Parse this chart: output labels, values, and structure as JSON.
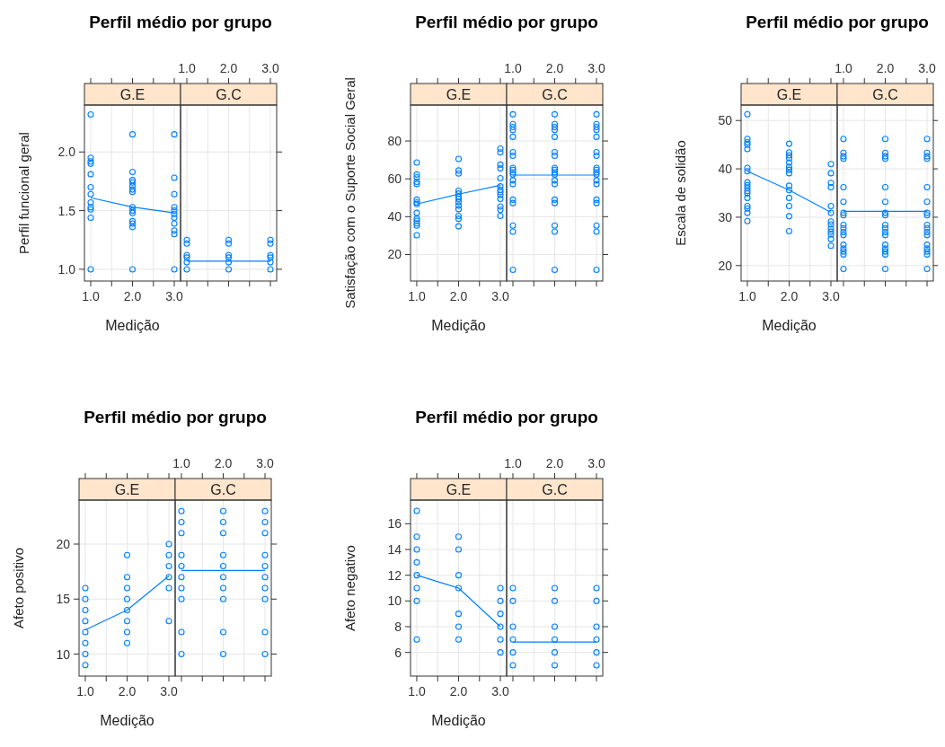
{
  "chart_data": [
    {
      "type": "scatter",
      "title": "Perfil médio por grupo",
      "subtitle": "G.E",
      "xlabel": "Medição",
      "ylabel": "Perfil funcional geral",
      "xlim": [
        0.85,
        3.15
      ],
      "xticks": [
        {
          "value": 1,
          "label": "1.0"
        },
        {
          "value": 1.5,
          "label": null
        },
        {
          "value": 2,
          "label": "2.0"
        },
        {
          "value": 2.5,
          "label": null
        },
        {
          "value": 3,
          "label": "3.0"
        }
      ],
      "ylim": [
        0.9,
        2.4
      ],
      "yticks": [
        {
          "value": 1,
          "label": "1.0"
        },
        {
          "value": 1.5,
          "label": "1.5"
        },
        {
          "value": 2,
          "label": "2.0"
        }
      ],
      "grid": true,
      "series": [
        {
          "type": "scatter",
          "marker": "circle",
          "color": "#0080ff",
          "x": [
            1,
            1,
            1,
            1,
            1,
            1,
            1,
            1,
            1,
            1,
            1,
            1,
            2,
            2,
            2,
            2,
            2,
            2,
            2,
            2,
            2,
            2,
            2,
            2,
            2,
            2,
            3,
            3,
            3,
            3,
            3,
            3,
            3,
            3,
            3,
            3,
            3
          ],
          "values": [
            2.32,
            1.95,
            1.92,
            1.9,
            1.81,
            1.7,
            1.64,
            1.57,
            1.53,
            1.51,
            1.44,
            1.0,
            2.15,
            1.83,
            1.76,
            1.74,
            1.71,
            1.68,
            1.66,
            1.53,
            1.5,
            1.48,
            1.41,
            1.39,
            1.36,
            1.0,
            2.15,
            1.78,
            1.64,
            1.53,
            1.5,
            1.47,
            1.44,
            1.39,
            1.33,
            1.3,
            1.0
          ]
        },
        {
          "type": "line",
          "color": "#0080ff",
          "x": [
            1,
            2,
            3
          ],
          "values": [
            1.61,
            1.53,
            1.48
          ]
        }
      ]
    },
    {
      "type": "scatter",
      "subtitle": "G.C",
      "xlim": [
        0.85,
        3.15
      ],
      "xticks": [
        1,
        1.5,
        2,
        2.5,
        3
      ],
      "x2lim": [
        0.85,
        3.15
      ],
      "x2ticks": [
        {
          "value": 1,
          "label": "1.0"
        },
        {
          "value": 1.5,
          "label": null
        },
        {
          "value": 2,
          "label": "2.0"
        },
        {
          "value": 2.5,
          "label": null
        },
        {
          "value": 3,
          "label": "3.0"
        }
      ],
      "ylim": [
        0.9,
        2.4
      ],
      "yticks": [
        1,
        1.5,
        2
      ],
      "tick_labels": false,
      "grid": true,
      "series": [
        {
          "type": "scatter",
          "marker": "circle",
          "color": "#0080ff",
          "x": [
            1,
            1,
            1,
            1,
            1,
            1,
            2,
            2,
            2,
            2,
            2,
            2,
            3,
            3,
            3,
            3,
            3,
            3
          ],
          "values": [
            1.25,
            1.22,
            1.12,
            1.1,
            1.06,
            1.0,
            1.25,
            1.22,
            1.12,
            1.1,
            1.06,
            1.0,
            1.25,
            1.22,
            1.12,
            1.1,
            1.06,
            1.0
          ]
        },
        {
          "type": "line",
          "color": "#0080ff",
          "x": [
            1,
            2,
            3
          ],
          "values": [
            1.07,
            1.07,
            1.07
          ]
        }
      ]
    },
    {
      "type": "scatter",
      "title": "Perfil médio por grupo",
      "subtitle": "G.E",
      "xlabel": "Medição",
      "ylabel": "Satisfação com o Suporte Social Geral",
      "xlim": [
        0.85,
        3.15
      ],
      "xticks": [
        {
          "value": 1,
          "label": "1.0"
        },
        {
          "value": 1.5,
          "label": null
        },
        {
          "value": 2,
          "label": "2.0"
        },
        {
          "value": 2.5,
          "label": null
        },
        {
          "value": 3,
          "label": "3.0"
        }
      ],
      "ylim": [
        6,
        99
      ],
      "yticks": [
        20,
        40,
        60,
        80
      ],
      "grid": true,
      "series": [
        {
          "type": "scatter",
          "marker": "circle",
          "color": "#0080ff",
          "x": [
            1,
            1,
            1,
            1,
            1,
            1,
            1,
            1,
            1,
            1,
            1,
            1,
            1,
            1,
            2,
            2,
            2,
            2,
            2,
            2,
            2,
            2,
            2,
            2,
            2,
            2,
            2,
            3,
            3,
            3,
            3,
            3,
            3,
            3,
            3,
            3,
            3,
            3,
            3,
            3
          ],
          "values": [
            68.6,
            62.3,
            60.8,
            58.4,
            57.3,
            49,
            47.5,
            46.7,
            42,
            38.9,
            37.8,
            36.5,
            35.3,
            30.2,
            70.5,
            64.4,
            62.8,
            53.7,
            52.2,
            50.6,
            49.4,
            47.8,
            45.9,
            44,
            40.4,
            38.9,
            34.9,
            76,
            74,
            67.5,
            65.5,
            60.3,
            56,
            54.2,
            53,
            51.4,
            49.4,
            45.4,
            43.6,
            40.4
          ]
        },
        {
          "type": "line",
          "color": "#0080ff",
          "x": [
            1,
            2,
            3
          ],
          "values": [
            46.7,
            51.9,
            56.6
          ]
        }
      ]
    },
    {
      "type": "scatter",
      "subtitle": "G.C",
      "xlim": [
        0.85,
        3.15
      ],
      "xticks": [
        1,
        1.5,
        2,
        2.5,
        3
      ],
      "x2lim": [
        0.85,
        3.15
      ],
      "x2ticks": [
        {
          "value": 1,
          "label": "1.0"
        },
        {
          "value": 1.5,
          "label": null
        },
        {
          "value": 2,
          "label": "2.0"
        },
        {
          "value": 2.5,
          "label": null
        },
        {
          "value": 3,
          "label": "3.0"
        }
      ],
      "ylim": [
        6,
        99
      ],
      "yticks": [
        20,
        40,
        60,
        80
      ],
      "tick_labels": false,
      "grid": true,
      "series": [
        {
          "type": "scatter",
          "marker": "circle",
          "color": "#0080ff",
          "x": [
            1,
            1,
            1,
            1,
            1,
            1,
            1,
            1,
            1,
            1,
            1,
            1,
            1,
            1,
            1,
            1,
            1,
            1,
            2,
            2,
            2,
            2,
            2,
            2,
            2,
            2,
            2,
            2,
            2,
            2,
            2,
            2,
            2,
            2,
            2,
            2,
            3,
            3,
            3,
            3,
            3,
            3,
            3,
            3,
            3,
            3,
            3,
            3,
            3,
            3,
            3,
            3,
            3,
            3
          ],
          "values": [
            94.1,
            88.9,
            87.4,
            85.8,
            82.2,
            74.1,
            72.2,
            65.8,
            64.7,
            63.4,
            62.3,
            59.2,
            57.2,
            49,
            47.2,
            35.3,
            32.1,
            11.9,
            94.1,
            88.9,
            87.4,
            85.8,
            82.2,
            74.1,
            72.2,
            65.8,
            64.7,
            63.4,
            62.3,
            59.2,
            57.2,
            49,
            47.2,
            35.3,
            32.1,
            11.9,
            94.1,
            88.9,
            87.4,
            85.8,
            82.2,
            74.1,
            72.2,
            65.8,
            64.7,
            63.4,
            62.3,
            59.2,
            57.2,
            49,
            47.2,
            35.3,
            32.1,
            11.9
          ]
        },
        {
          "type": "line",
          "color": "#0080ff",
          "x": [
            1,
            2,
            3
          ],
          "values": [
            62,
            62,
            62
          ]
        }
      ]
    },
    {
      "type": "scatter",
      "title": "Perfil médio por grupo",
      "subtitle": "G.E",
      "xlabel": "Medição",
      "ylabel": "Escala de solidão",
      "xlim": [
        0.85,
        3.15
      ],
      "xticks": [
        {
          "value": 1,
          "label": "1.0"
        },
        {
          "value": 1.5,
          "label": null
        },
        {
          "value": 2,
          "label": "2.0"
        },
        {
          "value": 2.5,
          "label": null
        },
        {
          "value": 3,
          "label": "3.0"
        }
      ],
      "ylim": [
        16.8,
        53.2
      ],
      "yticks": [
        20,
        30,
        40,
        50
      ],
      "grid": true,
      "series": [
        {
          "type": "scatter",
          "marker": "circle",
          "color": "#0080ff",
          "x": [
            1,
            1,
            1,
            1,
            1,
            1,
            1,
            1,
            1,
            1,
            1,
            1,
            1,
            1,
            1,
            1,
            1,
            2,
            2,
            2,
            2,
            2,
            2,
            2,
            2,
            2,
            2,
            2,
            2,
            2,
            2,
            3,
            3,
            3,
            3,
            3,
            3,
            3,
            3,
            3,
            3,
            3,
            3,
            3
          ],
          "values": [
            51.3,
            46.2,
            45.5,
            45,
            44.1,
            40.2,
            39.5,
            37.2,
            36.6,
            36,
            35.4,
            34.9,
            34,
            32.3,
            31.8,
            30.9,
            29.2,
            45.2,
            43.4,
            42.8,
            42.2,
            41.3,
            40.4,
            39.8,
            39.1,
            36.5,
            35.6,
            34,
            32.3,
            30.2,
            27.1,
            41,
            39.1,
            37.1,
            36.2,
            32.3,
            30.9,
            29.1,
            28.5,
            27.6,
            27,
            26.4,
            25.5,
            24.1
          ]
        },
        {
          "type": "line",
          "color": "#0080ff",
          "x": [
            1,
            2,
            3
          ],
          "values": [
            39.5,
            35.6,
            31
          ]
        }
      ]
    },
    {
      "type": "scatter",
      "subtitle": "G.C",
      "xlim": [
        0.85,
        3.15
      ],
      "xticks": [
        1,
        1.5,
        2,
        2.5,
        3
      ],
      "x2lim": [
        0.85,
        3.15
      ],
      "x2ticks": [
        {
          "value": 1,
          "label": "1.0"
        },
        {
          "value": 1.5,
          "label": null
        },
        {
          "value": 2,
          "label": "2.0"
        },
        {
          "value": 2.5,
          "label": null
        },
        {
          "value": 3,
          "label": "3.0"
        }
      ],
      "ylim": [
        16.8,
        53.2
      ],
      "yticks": [
        20,
        30,
        40,
        50
      ],
      "tick_labels": false,
      "grid": true,
      "series": [
        {
          "type": "scatter",
          "marker": "circle",
          "color": "#0080ff",
          "x": [
            1,
            1,
            1,
            1,
            1,
            1,
            1,
            1,
            1,
            1,
            1,
            1,
            1,
            1,
            1,
            1,
            1,
            2,
            2,
            2,
            2,
            2,
            2,
            2,
            2,
            2,
            2,
            2,
            2,
            2,
            2,
            2,
            2,
            2,
            3,
            3,
            3,
            3,
            3,
            3,
            3,
            3,
            3,
            3,
            3,
            3,
            3,
            3,
            3,
            3,
            3
          ],
          "values": [
            46.2,
            43.3,
            42.6,
            42.1,
            36.2,
            33.2,
            30.9,
            30.4,
            28.4,
            27.7,
            26.9,
            26.3,
            24.3,
            23.5,
            22.9,
            22.3,
            19.3,
            46.2,
            43.3,
            42.6,
            42.1,
            36.2,
            33.2,
            30.9,
            30.4,
            28.4,
            27.7,
            26.9,
            26.3,
            24.3,
            23.5,
            22.9,
            22.3,
            19.3,
            46.2,
            43.3,
            42.6,
            42.1,
            36.2,
            33.2,
            30.9,
            30.4,
            28.4,
            27.7,
            26.9,
            26.3,
            24.3,
            23.5,
            22.9,
            22.3,
            19.3
          ]
        },
        {
          "type": "line",
          "color": "#0080ff",
          "x": [
            1,
            2,
            3
          ],
          "values": [
            31.2,
            31.2,
            31.2
          ]
        }
      ]
    },
    {
      "type": "scatter",
      "title": "Perfil médio por grupo",
      "subtitle": "G.E",
      "xlabel": "Medição",
      "ylabel": "Afeto positivo",
      "xlim": [
        0.85,
        3.15
      ],
      "xticks": [
        {
          "value": 1,
          "label": "1.0"
        },
        {
          "value": 1.5,
          "label": null
        },
        {
          "value": 2,
          "label": "2.0"
        },
        {
          "value": 2.5,
          "label": null
        },
        {
          "value": 3,
          "label": "3.0"
        }
      ],
      "ylim": [
        8,
        24
      ],
      "yticks": [
        10,
        15,
        20
      ],
      "grid": true,
      "series": [
        {
          "type": "scatter",
          "marker": "circle",
          "color": "#0080ff",
          "x": [
            1,
            1,
            1,
            1,
            1,
            1,
            1,
            1,
            2,
            2,
            2,
            2,
            2,
            2,
            2,
            2,
            3,
            3,
            3,
            3,
            3,
            3
          ],
          "values": [
            16,
            15,
            14,
            13,
            12,
            11,
            10,
            9,
            19,
            17,
            16,
            15,
            14,
            13,
            12,
            11,
            20,
            19,
            18,
            17,
            16,
            13
          ]
        },
        {
          "type": "line",
          "color": "#0080ff",
          "x": [
            1,
            2,
            3
          ],
          "values": [
            12.2,
            14,
            17.1
          ]
        }
      ]
    },
    {
      "type": "scatter",
      "subtitle": "G.C",
      "xlim": [
        0.85,
        3.15
      ],
      "xticks": [
        1,
        1.5,
        2,
        2.5,
        3
      ],
      "x2lim": [
        0.85,
        3.15
      ],
      "x2ticks": [
        {
          "value": 1,
          "label": "1.0"
        },
        {
          "value": 1.5,
          "label": null
        },
        {
          "value": 2,
          "label": "2.0"
        },
        {
          "value": 2.5,
          "label": null
        },
        {
          "value": 3,
          "label": "3.0"
        }
      ],
      "ylim": [
        8,
        24
      ],
      "yticks": [
        10,
        15,
        20
      ],
      "tick_labels": false,
      "grid": true,
      "series": [
        {
          "type": "scatter",
          "marker": "circle",
          "color": "#0080ff",
          "x": [
            1,
            1,
            1,
            1,
            1,
            1,
            1,
            1,
            1,
            1,
            2,
            2,
            2,
            2,
            2,
            2,
            2,
            2,
            2,
            2,
            3,
            3,
            3,
            3,
            3,
            3,
            3,
            3,
            3,
            3
          ],
          "values": [
            23,
            22,
            21,
            19,
            18,
            17,
            16,
            15,
            12,
            10,
            23,
            22,
            21,
            19,
            18,
            17,
            16,
            15,
            12,
            10,
            23,
            22,
            21,
            19,
            18,
            17,
            16,
            15,
            12,
            10
          ]
        },
        {
          "type": "line",
          "color": "#0080ff",
          "x": [
            1,
            2,
            3
          ],
          "values": [
            17.6,
            17.6,
            17.6
          ]
        }
      ]
    },
    {
      "type": "scatter",
      "title": "Perfil médio por grupo",
      "subtitle": "G.E",
      "xlabel": "Medição",
      "ylabel": "Afeto negativo",
      "xlim": [
        0.85,
        3.15
      ],
      "xticks": [
        {
          "value": 1,
          "label": "1.0"
        },
        {
          "value": 1.5,
          "label": null
        },
        {
          "value": 2,
          "label": "2.0"
        },
        {
          "value": 2.5,
          "label": null
        },
        {
          "value": 3,
          "label": "3.0"
        }
      ],
      "ylim": [
        4.16,
        17.84
      ],
      "yticks": [
        6,
        8,
        10,
        12,
        14,
        16
      ],
      "grid": true,
      "series": [
        {
          "type": "scatter",
          "marker": "circle",
          "color": "#0080ff",
          "x": [
            1,
            1,
            1,
            1,
            1,
            1,
            1,
            1,
            2,
            2,
            2,
            2,
            2,
            2,
            2,
            3,
            3,
            3,
            3,
            3,
            3
          ],
          "values": [
            17,
            15,
            14,
            13,
            12,
            11,
            10,
            7,
            15,
            14,
            12,
            11,
            9,
            8,
            7,
            11,
            10,
            9,
            8,
            7,
            6
          ]
        },
        {
          "type": "line",
          "color": "#0080ff",
          "x": [
            1,
            2,
            3
          ],
          "values": [
            12,
            11,
            8
          ]
        }
      ]
    },
    {
      "type": "scatter",
      "subtitle": "G.C",
      "xlim": [
        0.85,
        3.15
      ],
      "xticks": [
        1,
        1.5,
        2,
        2.5,
        3
      ],
      "x2lim": [
        0.85,
        3.15
      ],
      "x2ticks": [
        {
          "value": 1,
          "label": "1.0"
        },
        {
          "value": 1.5,
          "label": null
        },
        {
          "value": 2,
          "label": "2.0"
        },
        {
          "value": 2.5,
          "label": null
        },
        {
          "value": 3,
          "label": "3.0"
        }
      ],
      "ylim": [
        4.16,
        17.84
      ],
      "yticks": [
        6,
        8,
        10,
        12,
        14,
        16
      ],
      "tick_labels": false,
      "grid": true,
      "series": [
        {
          "type": "scatter",
          "marker": "circle",
          "color": "#0080ff",
          "x": [
            1,
            1,
            1,
            1,
            1,
            1,
            2,
            2,
            2,
            2,
            2,
            2,
            3,
            3,
            3,
            3,
            3,
            3
          ],
          "values": [
            11,
            10,
            8,
            7,
            6,
            5,
            11,
            10,
            8,
            7,
            6,
            5,
            11,
            10,
            8,
            7,
            6,
            5
          ]
        },
        {
          "type": "line",
          "color": "#0080ff",
          "x": [
            1,
            2,
            3
          ],
          "values": [
            6.8,
            6.8,
            6.8
          ]
        }
      ]
    }
  ]
}
